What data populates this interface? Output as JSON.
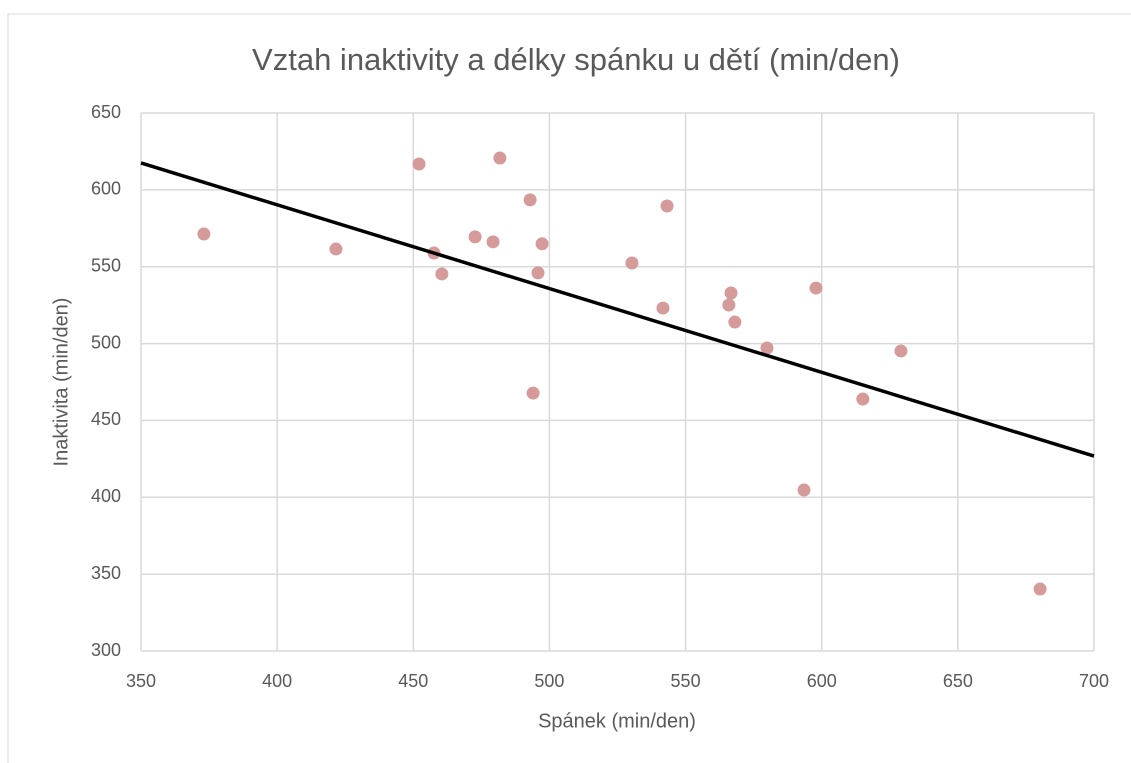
{
  "chart_data": {
    "type": "scatter",
    "title": "Vztah inaktivity a délky spánku u dětí (min/den)",
    "x_label": "Spánek (min/den)",
    "y_label": "Inaktivita (min/den)",
    "series": [
      {
        "name": "Inaktivita",
        "color": "#d59b9b",
        "x": [
          373.1,
          421.6,
          452.1,
          481.8,
          457.6,
          460.5,
          472.7,
          479.3,
          492.9,
          497.3,
          495.8,
          494.0,
          530.3,
          543.2,
          541.7,
          566.7,
          565.9,
          568.1,
          579.9,
          597.9,
          629.1,
          615.1,
          593.5,
          680.2
        ],
        "values": [
          571.3,
          561.5,
          616.8,
          620.7,
          558.9,
          545.3,
          569.4,
          566.2,
          593.5,
          564.9,
          546.0,
          467.8,
          552.4,
          589.5,
          523.1,
          532.9,
          525.1,
          514.0,
          497.1,
          536.1,
          495.2,
          463.9,
          404.7,
          340.3
        ]
      }
    ],
    "trendline": {
      "color": "#000000",
      "x": [
        350,
        700
      ],
      "values": [
        617.5,
        426.8
      ]
    },
    "xlim": [
      350,
      700
    ],
    "xticks": [
      350,
      400,
      450,
      500,
      550,
      600,
      650,
      700
    ],
    "ylim": [
      300,
      650
    ],
    "yticks": [
      300,
      350,
      400,
      450,
      500,
      550,
      600,
      650
    ],
    "grid": true
  }
}
